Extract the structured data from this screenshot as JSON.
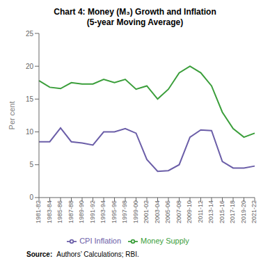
{
  "chart_data": {
    "type": "line",
    "title": "Chart 4: Money (M₃) Growth and Inflation\n(5-year Moving Average)",
    "y_label": "Per cent",
    "annotations": [
      "Source:",
      "Authors’ Calculations; RBI."
    ],
    "categories": [
      "1981-82",
      "1983-84",
      "1985-86",
      "1987-88",
      "1989-90",
      "1991-92",
      "1993-94",
      "1995-96",
      "1997-98",
      "1999-00",
      "2001-02",
      "2003-04",
      "2005-06",
      "2007-08",
      "2009-10",
      "2011-12",
      "2013-14",
      "2015-16",
      "2017-18",
      "2019-20",
      "2021-22"
    ],
    "series": [
      {
        "name": "Money Supply",
        "color": "#3a9e3a",
        "values": [
          17.8,
          16.8,
          16.6,
          17.5,
          17.3,
          17.3,
          18.0,
          17.5,
          18.0,
          16.5,
          17.0,
          15.0,
          16.5,
          19.0,
          20.0,
          19.0,
          17.0,
          13.0,
          10.5,
          9.2,
          9.8
        ]
      },
      {
        "name": "CPI Inflation",
        "color": "#6b5ea8",
        "values": [
          8.5,
          8.5,
          10.6,
          8.5,
          8.3,
          8.0,
          10.0,
          10.0,
          10.5,
          9.8,
          5.8,
          4.0,
          4.1,
          5.0,
          9.2,
          10.3,
          10.2,
          5.5,
          4.5,
          4.5,
          4.8
        ]
      }
    ],
    "ylim": [
      0,
      25
    ],
    "yticks": [
      0,
      5,
      10,
      15,
      20,
      25
    ],
    "grid": false,
    "legend": "bottom"
  }
}
